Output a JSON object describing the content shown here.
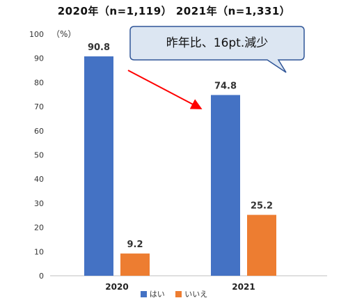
{
  "header": {
    "title": "2020年（n=1,119） 2021年（n=1,331）"
  },
  "callout": {
    "text": "昨年比、16pt.減少"
  },
  "chart_data": {
    "type": "bar",
    "categories": [
      "2020",
      "2021"
    ],
    "series": [
      {
        "name": "はい",
        "values": [
          90.8,
          74.8
        ],
        "color": "#4472C4"
      },
      {
        "name": "いいえ",
        "values": [
          9.2,
          25.2
        ],
        "color": "#ED7D31"
      }
    ],
    "yunit": "（%）",
    "ylim": [
      0,
      100
    ],
    "yticks": [
      0,
      10,
      20,
      30,
      40,
      50,
      60,
      70,
      80,
      90,
      100
    ],
    "legend_position": "bottom",
    "grid": false,
    "arrow_color": "#FF0000"
  }
}
